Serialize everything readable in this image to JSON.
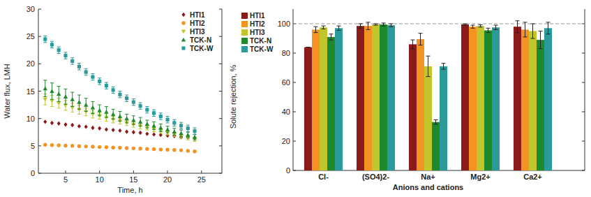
{
  "chart_data": [
    {
      "type": "scatter",
      "x_label": "Time, h",
      "y_label": "Water flux, LMH",
      "x": [
        2,
        3,
        4,
        5,
        6,
        7,
        8,
        9,
        10,
        11,
        12,
        13,
        14,
        15,
        16,
        17,
        18,
        19,
        20,
        21,
        22,
        23,
        24
      ],
      "series": [
        {
          "name": "HTI1",
          "color": "#8b1a1a",
          "marker": "diamond",
          "values": [
            9.4,
            9.2,
            9.1,
            8.9,
            8.8,
            8.6,
            8.5,
            8.3,
            8.2,
            8.0,
            7.9,
            7.8,
            7.6,
            7.5,
            7.4,
            7.2,
            7.1,
            7.0,
            6.9,
            6.8,
            6.6,
            6.5,
            6.4
          ]
        },
        {
          "name": "HTI2",
          "color": "#f39422",
          "marker": "circle",
          "values": [
            5.2,
            5.15,
            5.1,
            5.05,
            5.0,
            4.95,
            4.9,
            4.85,
            4.8,
            4.75,
            4.7,
            4.65,
            4.6,
            4.55,
            4.5,
            4.45,
            4.4,
            4.35,
            4.3,
            4.25,
            4.2,
            4.1,
            4.0
          ]
        },
        {
          "name": "HTI3",
          "color": "#c3c52c",
          "marker": "triangle-down",
          "values": [
            13.5,
            13.2,
            12.8,
            12.4,
            12.0,
            11.6,
            11.2,
            10.8,
            10.5,
            10.1,
            9.8,
            9.5,
            9.2,
            8.9,
            8.6,
            8.3,
            8.0,
            7.7,
            7.4,
            7.1,
            6.8,
            6.5,
            6.2
          ],
          "errors": [
            1.0,
            1.0,
            0.9,
            0.9,
            0.8,
            0.8,
            0.7,
            0.7,
            0.6,
            0.6,
            0.6,
            0.5,
            0.5,
            0.5,
            0.5,
            0.4,
            0.4,
            0.4,
            0.4,
            0.4,
            0.4,
            0.4,
            0.4
          ]
        },
        {
          "name": "TCK-N",
          "color": "#1e8a2e",
          "marker": "triangle-up",
          "values": [
            15.5,
            15.0,
            14.5,
            14.0,
            13.5,
            13.0,
            12.5,
            12.0,
            11.5,
            11.2,
            10.8,
            10.4,
            10.0,
            9.7,
            9.4,
            9.0,
            8.7,
            8.3,
            8.0,
            7.6,
            7.3,
            7.0,
            6.6
          ],
          "errors": [
            1.5,
            1.5,
            1.4,
            1.4,
            1.3,
            1.3,
            1.2,
            1.1,
            1.0,
            1.0,
            0.9,
            0.9,
            0.8,
            0.8,
            0.8,
            0.7,
            0.7,
            0.7,
            0.6,
            0.6,
            0.6,
            0.5,
            0.5
          ]
        },
        {
          "name": "TCK-W",
          "color": "#2a9a9a",
          "marker": "square",
          "values": [
            24.5,
            23.5,
            22.5,
            21.5,
            20.5,
            19.5,
            18.5,
            17.6,
            16.8,
            16.0,
            15.2,
            14.4,
            13.7,
            13.0,
            12.3,
            11.6,
            11.0,
            10.4,
            9.8,
            9.2,
            8.7,
            8.2,
            7.7
          ],
          "errors": [
            0.6,
            0.6,
            0.6,
            0.6,
            0.6,
            0.6,
            0.6,
            0.6,
            0.6,
            0.6,
            0.6,
            0.6,
            0.6,
            0.6,
            0.6,
            0.6,
            0.6,
            0.6,
            0.6,
            0.6,
            0.6,
            0.6,
            0.6
          ]
        }
      ],
      "xlim": [
        1,
        28
      ],
      "xticks": [
        5,
        10,
        15,
        20,
        25
      ],
      "ylim": [
        0,
        30
      ],
      "yticks": [
        0,
        5,
        10,
        15,
        20,
        25,
        30
      ],
      "legend": "upper right"
    },
    {
      "type": "bar",
      "x_label": "Anions and cations",
      "y_label": "Solute rejection, %",
      "categories": [
        "Cl-",
        "(SO4)2-",
        "Na+",
        "Mg2+",
        "Ca2+"
      ],
      "series": [
        {
          "name": "HTI1",
          "color": "#8b1a1a",
          "values": [
            84,
            98.5,
            86,
            99.5,
            98
          ],
          "errors": [
            0,
            1.5,
            3,
            0.5,
            4
          ]
        },
        {
          "name": "HTI2",
          "color": "#f39422",
          "values": [
            96,
            98.5,
            89.5,
            98,
            96
          ],
          "errors": [
            2,
            2.5,
            4,
            1,
            5
          ]
        },
        {
          "name": "HTI3",
          "color": "#c3c52c",
          "values": [
            97.5,
            99.5,
            71,
            98.5,
            95
          ],
          "errors": [
            1,
            0.5,
            7,
            0.8,
            5
          ]
        },
        {
          "name": "TCK-N",
          "color": "#1e8a2e",
          "values": [
            91,
            99.5,
            33,
            95.5,
            89
          ],
          "errors": [
            2,
            1,
            1.5,
            1.5,
            6
          ]
        },
        {
          "name": "TCK-W",
          "color": "#2a9a9a",
          "values": [
            97,
            99,
            71,
            97.5,
            97
          ],
          "errors": [
            1.5,
            1,
            2,
            1.5,
            4
          ]
        }
      ],
      "ylim": [
        0,
        110
      ],
      "yticks": [
        0,
        20,
        40,
        60,
        80,
        100
      ],
      "reference_line": 100,
      "legend": "upper left"
    }
  ]
}
